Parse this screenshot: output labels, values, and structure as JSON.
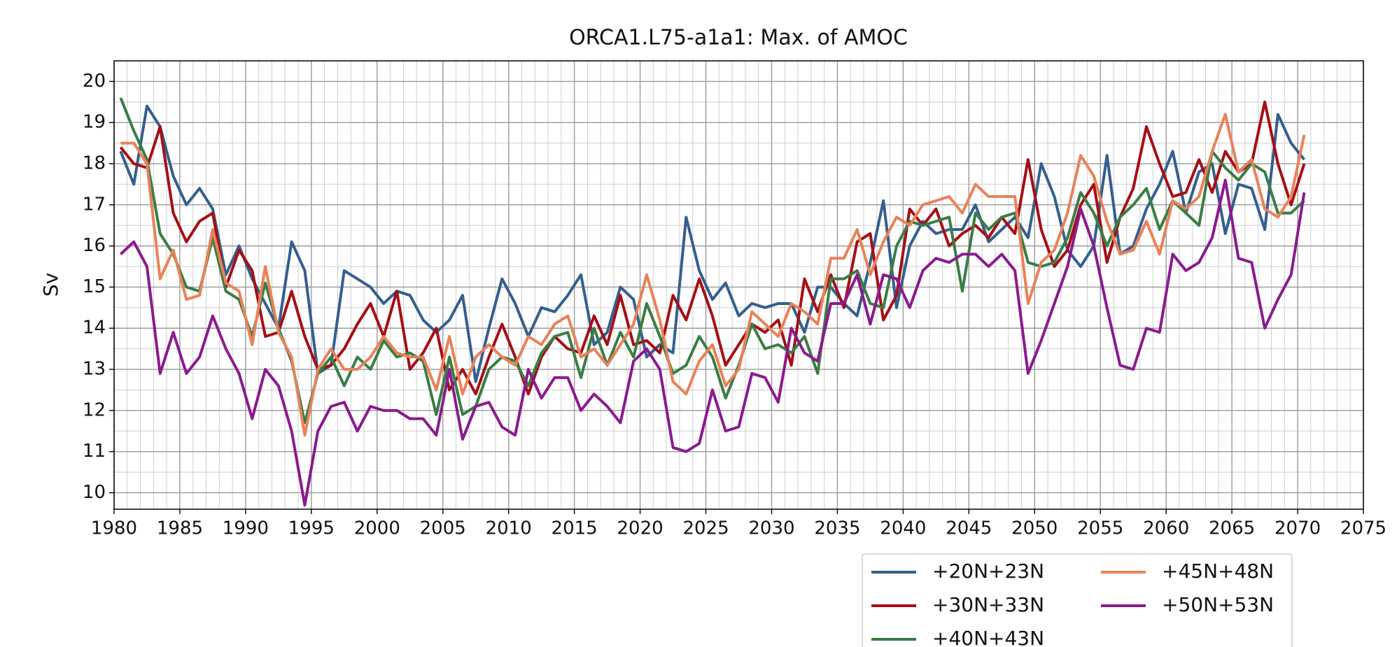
{
  "chart_data": {
    "type": "line",
    "title": "ORCA1.L75-a1a1: Max. of AMOC",
    "y_label": "Sv",
    "x": [
      1980.5,
      1981.5,
      1982.5,
      1983.5,
      1984.5,
      1985.5,
      1986.5,
      1987.5,
      1988.5,
      1989.5,
      1990.5,
      1991.5,
      1992.5,
      1993.5,
      1994.5,
      1995.5,
      1996.5,
      1997.5,
      1998.5,
      1999.5,
      2000.5,
      2001.5,
      2002.5,
      2003.5,
      2004.5,
      2005.5,
      2006.5,
      2007.5,
      2008.5,
      2009.5,
      2010.5,
      2011.5,
      2012.5,
      2013.5,
      2014.5,
      2015.5,
      2016.5,
      2017.5,
      2018.5,
      2019.5,
      2020.5,
      2021.5,
      2022.5,
      2023.5,
      2024.5,
      2025.5,
      2026.5,
      2027.5,
      2028.5,
      2029.5,
      2030.5,
      2031.5,
      2032.5,
      2033.5,
      2034.5,
      2035.5,
      2036.5,
      2037.5,
      2038.5,
      2039.5,
      2040.5,
      2041.5,
      2042.5,
      2043.5,
      2044.5,
      2045.5,
      2046.5,
      2047.5,
      2048.5,
      2049.5,
      2050.5,
      2051.5,
      2052.5,
      2053.5,
      2054.5,
      2055.5,
      2056.5,
      2057.5,
      2058.5,
      2059.5,
      2060.5,
      2061.5,
      2062.5,
      2063.5,
      2064.5,
      2065.5,
      2066.5,
      2067.5,
      2068.5,
      2069.5,
      2070.5
    ],
    "series": [
      {
        "name": "+20N+23N",
        "color": "#345f8e",
        "values": [
          18.3,
          17.5,
          19.4,
          18.9,
          17.7,
          17.0,
          17.4,
          16.9,
          15.3,
          16.0,
          15.2,
          14.6,
          14.0,
          16.1,
          15.4,
          12.9,
          13.1,
          15.4,
          15.2,
          15.0,
          14.6,
          14.9,
          14.8,
          14.2,
          13.9,
          14.2,
          14.8,
          12.7,
          14.0,
          15.2,
          14.6,
          13.8,
          14.5,
          14.4,
          14.8,
          15.3,
          13.6,
          13.9,
          15.0,
          14.7,
          13.3,
          13.6,
          13.4,
          16.7,
          15.4,
          14.7,
          15.1,
          14.3,
          14.6,
          14.5,
          14.6,
          14.6,
          13.9,
          15.0,
          15.0,
          14.6,
          14.3,
          15.6,
          17.1,
          14.5,
          16.0,
          16.6,
          16.3,
          16.4,
          16.4,
          17.0,
          16.1,
          16.4,
          16.7,
          16.2,
          18.0,
          17.2,
          15.9,
          15.5,
          16.0,
          18.2,
          15.8,
          16.0,
          16.9,
          17.5,
          18.3,
          16.8,
          17.8,
          18.0,
          16.3,
          17.5,
          17.4,
          16.4,
          19.2,
          18.5,
          18.1
        ]
      },
      {
        "name": "+30N+33N",
        "color": "#a50f15",
        "values": [
          18.4,
          18.0,
          17.9,
          18.9,
          16.8,
          16.1,
          16.6,
          16.8,
          15.0,
          15.9,
          15.4,
          13.8,
          13.9,
          14.9,
          13.8,
          13.0,
          13.1,
          13.5,
          14.1,
          14.6,
          13.8,
          14.9,
          13.0,
          13.4,
          14.0,
          12.5,
          13.0,
          12.4,
          13.3,
          14.1,
          13.3,
          12.4,
          13.3,
          13.8,
          13.5,
          13.4,
          14.3,
          13.6,
          14.8,
          13.6,
          13.7,
          13.4,
          14.8,
          14.2,
          15.2,
          14.3,
          13.1,
          13.6,
          14.1,
          13.9,
          14.2,
          13.1,
          15.2,
          14.4,
          15.3,
          14.5,
          16.1,
          16.3,
          14.2,
          14.8,
          16.9,
          16.5,
          16.9,
          16.0,
          16.3,
          16.5,
          16.2,
          16.7,
          16.3,
          18.1,
          16.4,
          15.5,
          15.9,
          17.0,
          17.5,
          15.6,
          16.7,
          17.4,
          18.9,
          18.0,
          17.2,
          17.3,
          18.1,
          17.3,
          18.3,
          17.8,
          18.0,
          19.5,
          18.0,
          17.0,
          18.0
        ]
      },
      {
        "name": "+40N+43N",
        "color": "#3a7d44",
        "values": [
          19.6,
          18.8,
          18.1,
          16.3,
          15.8,
          15.0,
          14.9,
          16.2,
          14.9,
          14.7,
          13.8,
          15.1,
          14.0,
          13.2,
          11.7,
          12.9,
          13.3,
          12.6,
          13.3,
          13.0,
          13.7,
          13.3,
          13.4,
          13.2,
          11.9,
          13.3,
          11.9,
          12.1,
          13.0,
          13.3,
          13.2,
          12.6,
          13.4,
          13.8,
          13.9,
          12.8,
          14.0,
          13.1,
          13.9,
          13.3,
          14.6,
          13.8,
          12.9,
          13.1,
          13.8,
          13.3,
          12.3,
          13.1,
          14.1,
          13.5,
          13.6,
          13.4,
          13.8,
          12.9,
          15.2,
          15.2,
          15.4,
          14.6,
          14.5,
          16.0,
          16.6,
          16.5,
          16.6,
          16.7,
          14.9,
          16.8,
          16.4,
          16.7,
          16.8,
          15.6,
          15.5,
          15.6,
          16.2,
          17.3,
          16.8,
          16.0,
          16.7,
          17.0,
          17.4,
          16.4,
          17.1,
          16.8,
          16.5,
          18.3,
          17.9,
          17.6,
          18.0,
          17.8,
          16.8,
          16.8,
          17.1
        ]
      },
      {
        "name": "+45N+48N",
        "color": "#e8825a",
        "values": [
          18.5,
          18.5,
          18.0,
          15.2,
          15.9,
          14.7,
          14.8,
          16.4,
          15.1,
          14.9,
          13.6,
          15.5,
          13.9,
          13.3,
          11.4,
          13.0,
          13.5,
          13.0,
          13.0,
          13.3,
          13.8,
          13.4,
          13.3,
          13.3,
          12.5,
          13.8,
          12.4,
          13.3,
          13.6,
          13.3,
          13.1,
          13.8,
          13.6,
          14.1,
          14.3,
          13.3,
          13.5,
          13.1,
          13.6,
          14.1,
          15.3,
          14.2,
          12.7,
          12.4,
          13.2,
          13.6,
          12.6,
          13.0,
          14.4,
          14.1,
          13.8,
          14.6,
          14.4,
          14.1,
          15.7,
          15.7,
          16.4,
          15.3,
          16.1,
          16.7,
          16.5,
          17.0,
          17.1,
          17.2,
          16.8,
          17.5,
          17.2,
          17.2,
          17.2,
          14.6,
          15.6,
          15.9,
          16.8,
          18.2,
          17.7,
          16.6,
          15.8,
          15.9,
          16.6,
          15.8,
          17.1,
          16.9,
          17.2,
          18.3,
          19.2,
          17.8,
          18.1,
          16.9,
          16.7,
          17.2,
          18.7
        ]
      },
      {
        "name": "+50N+53N",
        "color": "#8b1a8f",
        "values": [
          15.8,
          16.1,
          15.5,
          12.9,
          13.9,
          12.9,
          13.3,
          14.3,
          13.5,
          12.9,
          11.8,
          13.0,
          12.6,
          11.5,
          9.7,
          11.5,
          12.1,
          12.2,
          11.5,
          12.1,
          12.0,
          12.0,
          11.8,
          11.8,
          11.4,
          13.0,
          11.3,
          12.1,
          12.2,
          11.6,
          11.4,
          13.0,
          12.3,
          12.8,
          12.8,
          12.0,
          12.4,
          12.1,
          11.7,
          13.2,
          13.5,
          13.0,
          11.1,
          11.0,
          11.2,
          12.5,
          11.5,
          11.6,
          12.9,
          12.8,
          12.2,
          14.0,
          13.4,
          13.2,
          14.6,
          14.6,
          15.3,
          14.1,
          15.3,
          15.2,
          14.5,
          15.4,
          15.7,
          15.6,
          15.8,
          15.8,
          15.5,
          15.8,
          15.4,
          12.9,
          13.7,
          14.6,
          15.5,
          16.9,
          16.0,
          14.5,
          13.1,
          13.0,
          14.0,
          13.9,
          15.8,
          15.4,
          15.6,
          16.2,
          17.6,
          15.7,
          15.6,
          14.0,
          14.7,
          15.3,
          17.3
        ]
      }
    ],
    "xlim": [
      1980,
      2075
    ],
    "xticks": [
      1980,
      1985,
      1990,
      1995,
      2000,
      2005,
      2010,
      2015,
      2020,
      2025,
      2030,
      2035,
      2040,
      2045,
      2050,
      2055,
      2060,
      2065,
      2070,
      2075
    ],
    "ylim": [
      9.6,
      20.5
    ],
    "yticks": [
      10,
      11,
      12,
      13,
      14,
      15,
      16,
      17,
      18,
      19,
      20
    ],
    "grid": true,
    "legend": "below-right"
  }
}
